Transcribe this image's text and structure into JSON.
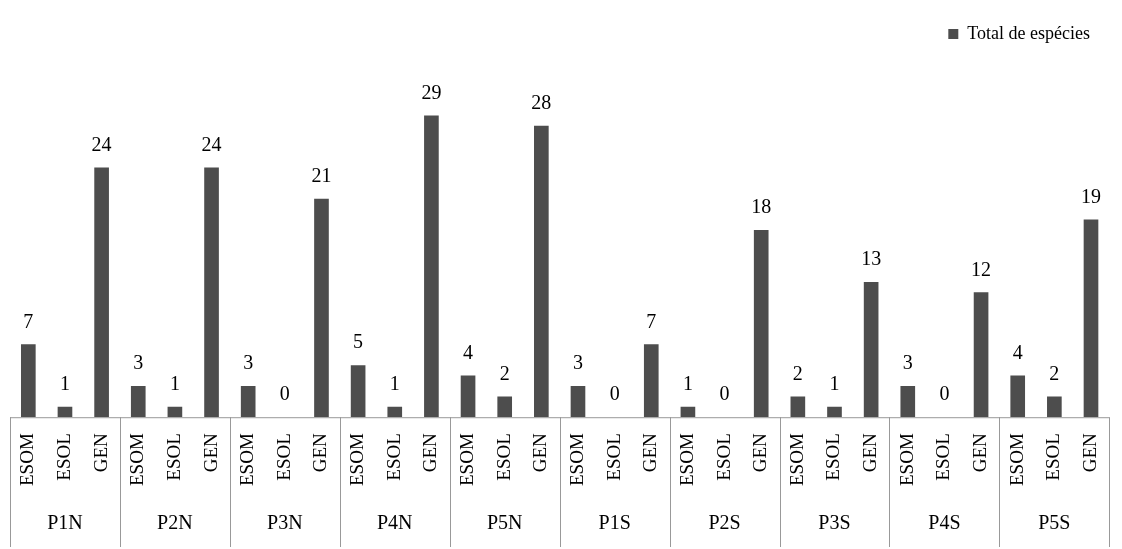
{
  "chart_data": {
    "type": "bar",
    "categories": [
      "ESOM",
      "ESOL",
      "GEN",
      "ESOM",
      "ESOL",
      "GEN",
      "ESOM",
      "ESOL",
      "GEN",
      "ESOM",
      "ESOL",
      "GEN",
      "ESOM",
      "ESOL",
      "GEN",
      "ESOM",
      "ESOL",
      "GEN",
      "ESOM",
      "ESOL",
      "GEN",
      "ESOM",
      "ESOL",
      "GEN",
      "ESOM",
      "ESOL",
      "GEN",
      "ESOM",
      "ESOL",
      "GEN"
    ],
    "series": [
      {
        "name": "Total de espécies",
        "color": "#4d4d4d",
        "values": [
          7,
          1,
          24,
          3,
          1,
          24,
          3,
          0,
          21,
          5,
          1,
          29,
          4,
          2,
          28,
          3,
          0,
          7,
          1,
          0,
          18,
          2,
          1,
          13,
          3,
          0,
          12,
          4,
          2,
          19
        ]
      }
    ],
    "annotations": [
      "P1N",
      "P2N",
      "P3N",
      "P4N",
      "P5N",
      "P1S",
      "P2S",
      "P3S",
      "P4S",
      "P5S"
    ],
    "data_labels": true,
    "legend": "top right",
    "grid": false
  }
}
